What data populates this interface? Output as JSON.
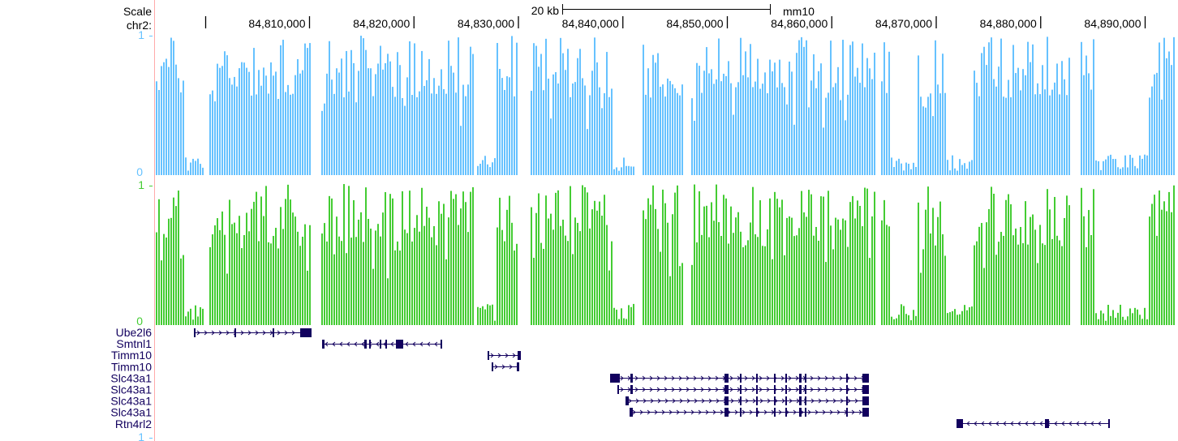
{
  "header": {
    "scale_label": "Scale",
    "chrom_label": "chr2:",
    "scalebar_label": "20 kb",
    "assembly": "mm10"
  },
  "ruler": {
    "ticks": [
      "84,810,000",
      "84,820,000",
      "84,830,000",
      "84,840,000",
      "84,850,000",
      "84,860,000",
      "84,870,000",
      "84,880,000",
      "84,890,000"
    ]
  },
  "tracks": {
    "blue": {
      "color": "#66c2ff",
      "max_label": "1",
      "min_label": "0"
    },
    "green": {
      "color": "#44cc33",
      "max_label": "1",
      "min_label": "0"
    },
    "bottom_label": "1"
  },
  "genes": {
    "color": "#12005e",
    "items": [
      "Ube2l6",
      "Smtnl1",
      "Timm10",
      "Timm10",
      "Slc43a1",
      "Slc43a1",
      "Slc43a1",
      "Slc43a1",
      "Rtn4rl2"
    ]
  },
  "colors": {
    "left_border": "#ffaaaa"
  }
}
